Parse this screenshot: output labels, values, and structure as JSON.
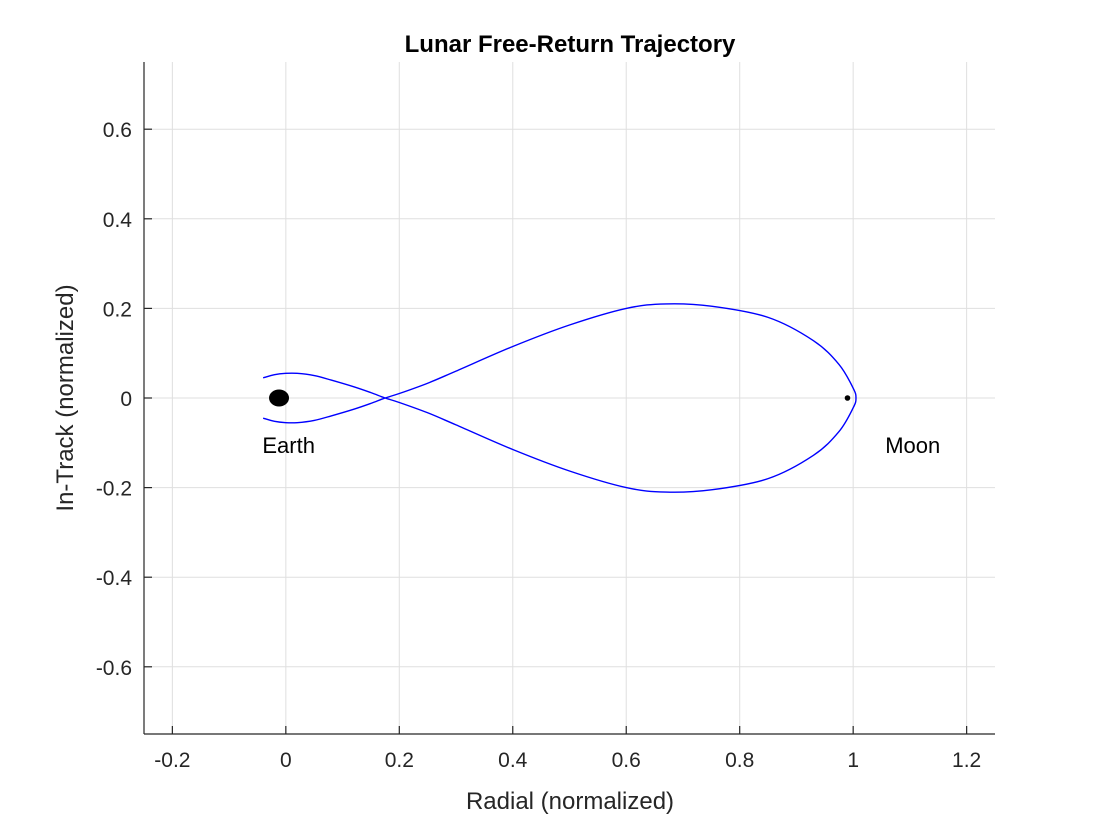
{
  "chart_data": {
    "type": "line",
    "title": "Lunar Free-Return Trajectory",
    "xlabel": "Radial (normalized)",
    "ylabel": "In-Track (normalized)",
    "xlim": [
      -0.25,
      1.25
    ],
    "ylim": [
      -0.75,
      0.75
    ],
    "xticks": [
      -0.2,
      0,
      0.2,
      0.4,
      0.6,
      0.8,
      1,
      1.2
    ],
    "xtick_labels": [
      "-0.2",
      "0",
      "0.2",
      "0.4",
      "0.6",
      "0.8",
      "1",
      "1.2"
    ],
    "yticks": [
      -0.6,
      -0.4,
      -0.2,
      0,
      0.2,
      0.4,
      0.6
    ],
    "ytick_labels": [
      "-0.6",
      "-0.4",
      "-0.2",
      "0",
      "0.2",
      "0.4",
      "0.6"
    ],
    "grid": true,
    "series": [
      {
        "color": "#0000ff",
        "x": [
          -0.04,
          -0.02,
          0.0,
          0.02,
          0.05,
          0.08,
          0.12,
          0.15,
          0.175,
          0.2,
          0.25,
          0.3,
          0.4,
          0.5,
          0.6,
          0.67,
          0.75,
          0.85,
          0.93,
          0.975,
          1.0,
          1.005,
          1.0,
          0.975,
          0.93,
          0.85,
          0.75,
          0.67,
          0.6,
          0.5,
          0.4,
          0.3,
          0.25,
          0.2,
          0.175,
          0.15,
          0.12,
          0.08,
          0.05,
          0.02,
          0.0,
          -0.02,
          -0.04
        ],
        "y": [
          0.045,
          0.052,
          0.055,
          0.055,
          0.05,
          0.04,
          0.025,
          0.012,
          0.0,
          -0.01,
          -0.033,
          -0.06,
          -0.115,
          -0.163,
          -0.2,
          -0.21,
          -0.205,
          -0.18,
          -0.128,
          -0.075,
          -0.022,
          0.0,
          0.022,
          0.075,
          0.128,
          0.18,
          0.205,
          0.21,
          0.2,
          0.163,
          0.115,
          0.06,
          0.033,
          0.01,
          0.0,
          -0.012,
          -0.025,
          -0.04,
          -0.05,
          -0.055,
          -0.055,
          -0.052,
          -0.045
        ]
      }
    ],
    "bodies": [
      {
        "label": "Earth",
        "x": -0.012,
        "y": 0.0,
        "label_x": 0.005,
        "label_y": -0.105,
        "color": "#000000"
      },
      {
        "label": "Moon",
        "x": 0.99,
        "y": 0.0,
        "label_x": 1.105,
        "label_y": -0.105,
        "color": "#000000"
      }
    ]
  }
}
